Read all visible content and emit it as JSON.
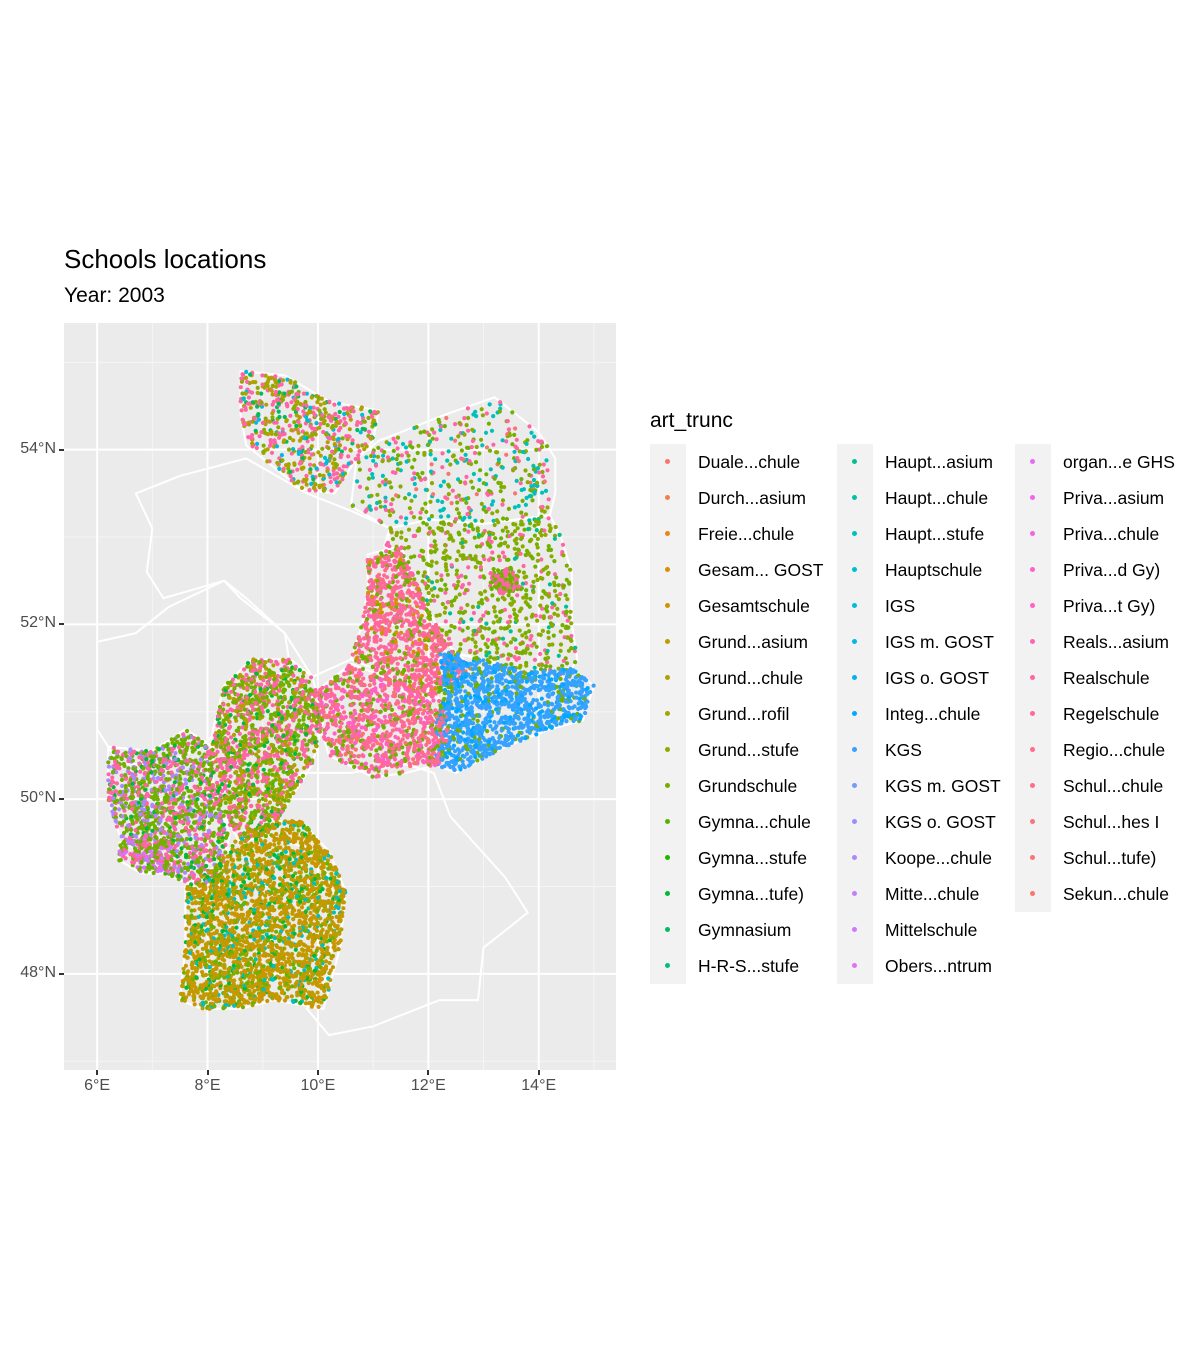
{
  "title": "Schools locations",
  "subtitle": "Year: 2003",
  "axes": {
    "x_ticks": [
      "6°E",
      "8°E",
      "10°E",
      "12°E",
      "14°E"
    ],
    "y_ticks": [
      "54°N",
      "52°N",
      "50°N",
      "48°N"
    ],
    "x_range": [
      5.4,
      15.4
    ],
    "y_range": [
      46.9,
      55.45
    ]
  },
  "legend": {
    "title": "art_trunc",
    "items": [
      {
        "label": "Duale...chule",
        "color": "#F8766D"
      },
      {
        "label": "Durch...asium",
        "color": "#F07F4F"
      },
      {
        "label": "Freie...chule",
        "color": "#E7861B"
      },
      {
        "label": "Gesam... GOST",
        "color": "#DB8E00"
      },
      {
        "label": "Gesamtschule",
        "color": "#CE9500"
      },
      {
        "label": "Grund...asium",
        "color": "#C09B00"
      },
      {
        "label": "Grund...chule",
        "color": "#B0A100"
      },
      {
        "label": "Grund...rofil",
        "color": "#9EA700"
      },
      {
        "label": "Grund...stufe",
        "color": "#8AAB00"
      },
      {
        "label": "Grundschule",
        "color": "#72B000"
      },
      {
        "label": "Gymna...chule",
        "color": "#53B400"
      },
      {
        "label": "Gymna...stufe",
        "color": "#1BB800"
      },
      {
        "label": "Gymna...tufe)",
        "color": "#00BA38"
      },
      {
        "label": "Gymnasium",
        "color": "#00BD5C"
      },
      {
        "label": "H-R-S...stufe",
        "color": "#00BF78"
      },
      {
        "label": "Haupt...asium",
        "color": "#00C091"
      },
      {
        "label": "Haupt...chule",
        "color": "#00C1A7"
      },
      {
        "label": "Haupt...stufe",
        "color": "#00C0BB"
      },
      {
        "label": "Hauptschule",
        "color": "#00BECD"
      },
      {
        "label": "IGS",
        "color": "#00BBDC"
      },
      {
        "label": "IGS m. GOST",
        "color": "#00B7E9"
      },
      {
        "label": "IGS o. GOST",
        "color": "#00B1F4"
      },
      {
        "label": "Integ...chule",
        "color": "#00A9FF"
      },
      {
        "label": "KGS",
        "color": "#35A2FF"
      },
      {
        "label": "KGS m. GOST",
        "color": "#7799FF"
      },
      {
        "label": "KGS o. GOST",
        "color": "#9590FF"
      },
      {
        "label": "Koope...chule",
        "color": "#AC88FF"
      },
      {
        "label": "Mitte...chule",
        "color": "#BF80FF"
      },
      {
        "label": "Mittelschule",
        "color": "#CF78FF"
      },
      {
        "label": "Obers...ntrum",
        "color": "#DC71FA"
      },
      {
        "label": "organ...e GHS",
        "color": "#E76BF3"
      },
      {
        "label": "Priva...asium",
        "color": "#F066EA"
      },
      {
        "label": "Priva...chule",
        "color": "#F763DF"
      },
      {
        "label": "Priva...d Gy)",
        "color": "#FC61D3"
      },
      {
        "label": "Priva...t Gy)",
        "color": "#FF61C5"
      },
      {
        "label": "Reals...asium",
        "color": "#FF62B6"
      },
      {
        "label": "Realschule",
        "color": "#FF65A5"
      },
      {
        "label": "Regelschule",
        "color": "#FF6A93"
      },
      {
        "label": "Regio...chule",
        "color": "#FF6C91"
      },
      {
        "label": "Schul...chule",
        "color": "#FE6E8A"
      },
      {
        "label": "Schul...hes I",
        "color": "#FA7180"
      },
      {
        "label": "Schul...tufe)",
        "color": "#F97477"
      },
      {
        "label": "Sekun...chule",
        "color": "#F8766D"
      }
    ],
    "columns": 3,
    "rows": 15
  },
  "colors": {
    "panel_bg": "#ebebeb",
    "grid": "#ffffff",
    "sachsen_blue": "#35A2FF",
    "bw_gold": "#C99400",
    "pink": "#FF61C5",
    "green": "#00BF78",
    "olive": "#9EA700"
  }
}
